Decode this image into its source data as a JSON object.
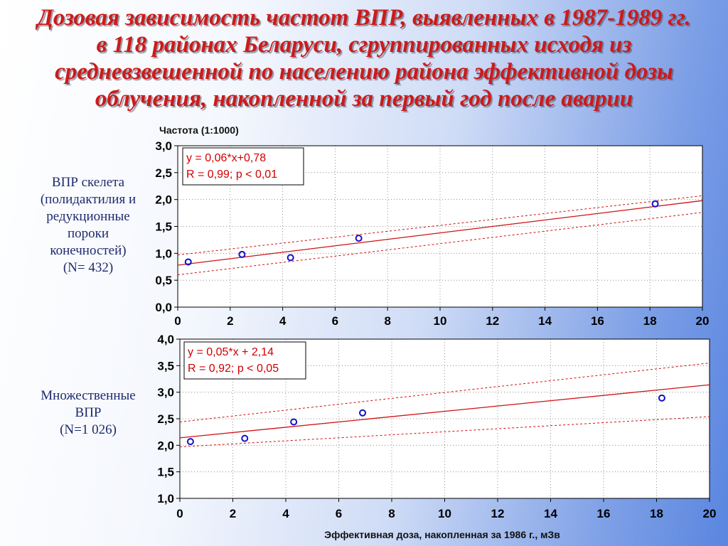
{
  "title": {
    "lines": [
      "Дозовая зависимость частот ВПР, выявленных в 1987-1989 гг.",
      "в 118 районах Беларуси, сгруппированных исходя из",
      "средневзвешенной по населению района эффективной дозы",
      "облучения, накопленной за первый год после аварии"
    ]
  },
  "side_labels": [
    {
      "lines": [
        "ВПР скелета",
        "(полидактилия и",
        "редукционные",
        "пороки",
        "конечностей)",
        "(N= 432)"
      ]
    },
    {
      "lines": [
        "Множественные",
        "ВПР",
        "(N=1 026)"
      ]
    }
  ],
  "colors": {
    "title": "#cc1a1a",
    "side_text": "#1e2a6e",
    "points": "#1010c8",
    "fit_line": "#d01010",
    "annotation": "#d00000",
    "grid": "#7a7a7a"
  },
  "chart_data": [
    {
      "type": "scatter",
      "ylabel": "Частота (1:1000)",
      "xlabel": "",
      "xlim": [
        0,
        20
      ],
      "ylim": [
        0,
        3
      ],
      "x_ticks": [
        "0",
        "2",
        "4",
        "6",
        "8",
        "10",
        "12",
        "14",
        "16",
        "18",
        "20"
      ],
      "y_ticks": [
        "0,0",
        "0,5",
        "1,0",
        "1,5",
        "2,0",
        "2,5",
        "3,0"
      ],
      "grid": true,
      "points": [
        {
          "x": 0.4,
          "y": 0.84
        },
        {
          "x": 2.45,
          "y": 0.98
        },
        {
          "x": 4.3,
          "y": 0.92
        },
        {
          "x": 6.9,
          "y": 1.28
        },
        {
          "x": 18.2,
          "y": 1.92
        }
      ],
      "fit": {
        "slope": 0.06,
        "intercept": 0.78
      },
      "confidence_band": {
        "upper": [
          [
            0,
            0.97
          ],
          [
            20,
            2.07
          ]
        ],
        "lower": [
          [
            0,
            0.6
          ],
          [
            20,
            1.76
          ]
        ]
      },
      "annotation": [
        "y = 0,06*x+0,78",
        "R = 0,99; p < 0,01"
      ]
    },
    {
      "type": "scatter",
      "ylabel": "",
      "xlabel": "Эффективная доза, накопленная за 1986 г., мЗв",
      "xlim": [
        0,
        20
      ],
      "ylim": [
        1,
        4
      ],
      "x_ticks": [
        "0",
        "2",
        "4",
        "6",
        "8",
        "10",
        "12",
        "14",
        "16",
        "18",
        "20"
      ],
      "y_ticks": [
        "1,0",
        "1,5",
        "2,0",
        "2,5",
        "3,0",
        "3,5",
        "4,0"
      ],
      "grid": true,
      "points": [
        {
          "x": 0.4,
          "y": 2.07
        },
        {
          "x": 2.45,
          "y": 2.13
        },
        {
          "x": 4.3,
          "y": 2.44
        },
        {
          "x": 6.9,
          "y": 2.61
        },
        {
          "x": 18.2,
          "y": 2.89
        }
      ],
      "fit": {
        "slope": 0.05,
        "intercept": 2.14
      },
      "confidence_band": {
        "upper": [
          [
            0,
            2.44
          ],
          [
            20,
            3.55
          ]
        ],
        "lower": [
          [
            0,
            1.97
          ],
          [
            20,
            2.54
          ]
        ]
      },
      "annotation": [
        "y = 0,05*x + 2,14",
        "R = 0,92; p < 0,05"
      ]
    }
  ]
}
